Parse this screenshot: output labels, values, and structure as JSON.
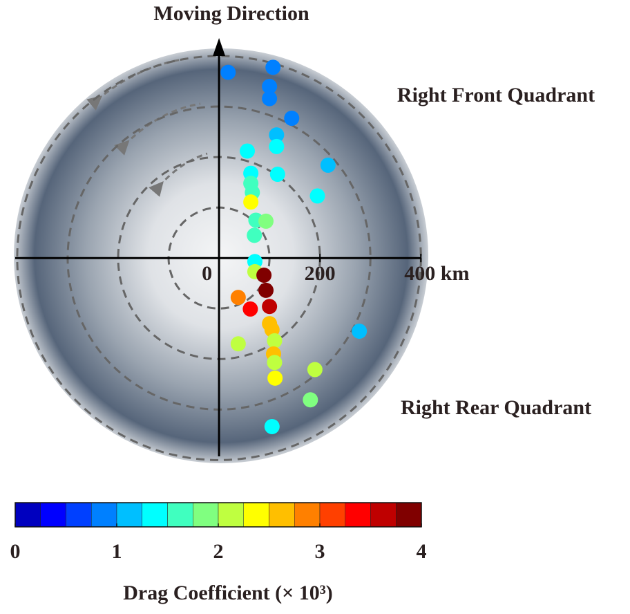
{
  "chart_data": {
    "type": "scatter",
    "title": "Moving Direction",
    "annotations": [
      "Right Front Quadrant",
      "Right Rear Quadrant"
    ],
    "x": [
      18,
      107,
      100,
      100,
      144,
      114,
      114,
      216,
      56,
      116,
      63,
      63,
      66,
      195,
      63,
      73,
      93,
      70,
      71,
      71,
      89,
      93,
      38,
      62,
      100,
      100,
      105,
      110,
      38,
      278,
      108,
      110,
      190,
      111,
      181,
      105
    ],
    "y": [
      368,
      378,
      340,
      316,
      277,
      244,
      221,
      184,
      212,
      166,
      168,
      148,
      130,
      123,
      111,
      75,
      73,
      45,
      -7,
      -27,
      -34,
      -64,
      -78,
      -101,
      -96,
      -130,
      -142,
      -164,
      -170,
      -145,
      -190,
      -207,
      -221,
      -238,
      -281,
      -334
    ],
    "c": [
      0.9,
      0.9,
      0.9,
      0.9,
      0.8,
      1.1,
      1.3,
      1.1,
      1.4,
      1.4,
      1.4,
      1.5,
      1.5,
      1.3,
      2.4,
      1.7,
      1.9,
      1.7,
      1.4,
      2.1,
      3.9,
      3.9,
      2.8,
      3.4,
      3.7,
      2.6,
      2.6,
      2.1,
      2.0,
      1.1,
      2.6,
      2.1,
      2.1,
      2.4,
      1.9,
      1.3
    ],
    "xlim": [
      -404,
      401
    ],
    "ylim": [
      -393,
      436
    ],
    "xticks": [
      0,
      200,
      {
        "value": 400,
        "label": "400 km"
      }
    ],
    "ring_radii": [
      100,
      200,
      300,
      400
    ],
    "colormap": [
      "#0000BF",
      "#0000FF",
      "#0040FF",
      "#0080FF",
      "#00BFFF",
      "#00FFFF",
      "#40FFBF",
      "#80FF80",
      "#BFFF40",
      "#FFFF00",
      "#FFBF00",
      "#FF8000",
      "#FF4000",
      "#FF0000",
      "#BF0000",
      "#800000"
    ],
    "clim": [
      0,
      4
    ],
    "colorbar_ticks": [
      0,
      1,
      2,
      3,
      4
    ],
    "colorbar_label": "Drag Coefficient (× 10³)"
  }
}
